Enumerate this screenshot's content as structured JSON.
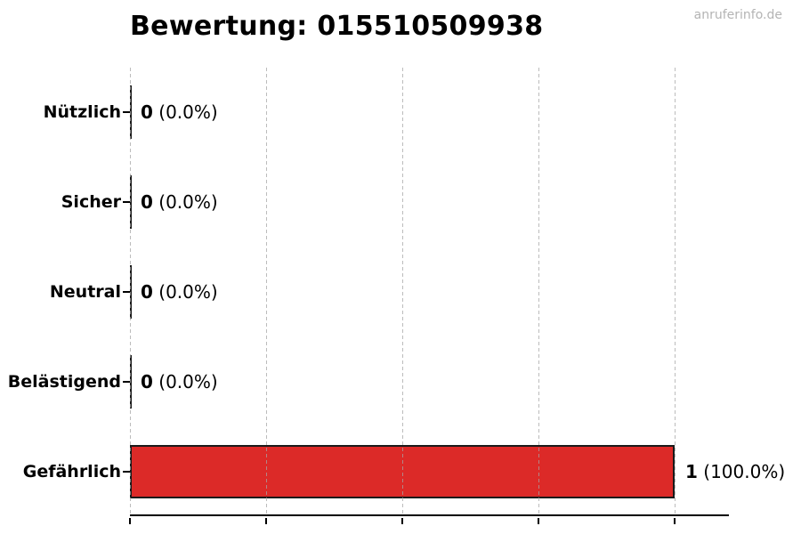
{
  "title": "Bewertung: 015510509938",
  "watermark": "anruferinfo.de",
  "colors": {
    "bar_fill": "#dc2a28",
    "bar_edge": "#1a1a1a",
    "grid": "#aaaaaa",
    "axis": "#000000",
    "watermark": "#b4b4b4",
    "title_text": "#000000"
  },
  "chart_data": {
    "type": "bar",
    "orientation": "horizontal",
    "title": "Bewertung: 015510509938",
    "categories": [
      "Nützlich",
      "Sicher",
      "Neutral",
      "Belästigend",
      "Gefährlich"
    ],
    "values": [
      0,
      0,
      0,
      0,
      1
    ],
    "counts": [
      "0",
      "0",
      "0",
      "0",
      "1"
    ],
    "percent_labels": [
      "(0.0%)",
      "(0.0%)",
      "(0.0%)",
      "(0.0%)",
      "(100.0%)"
    ],
    "xlabel": "",
    "ylabel": "",
    "xlim": [
      0,
      1.1
    ],
    "x_ticks": [
      0,
      0.25,
      0.5,
      0.75,
      1.0
    ],
    "x_tick_labels_shown": false,
    "grid": true,
    "grid_style": "dashed-vertical",
    "legend": "none"
  }
}
